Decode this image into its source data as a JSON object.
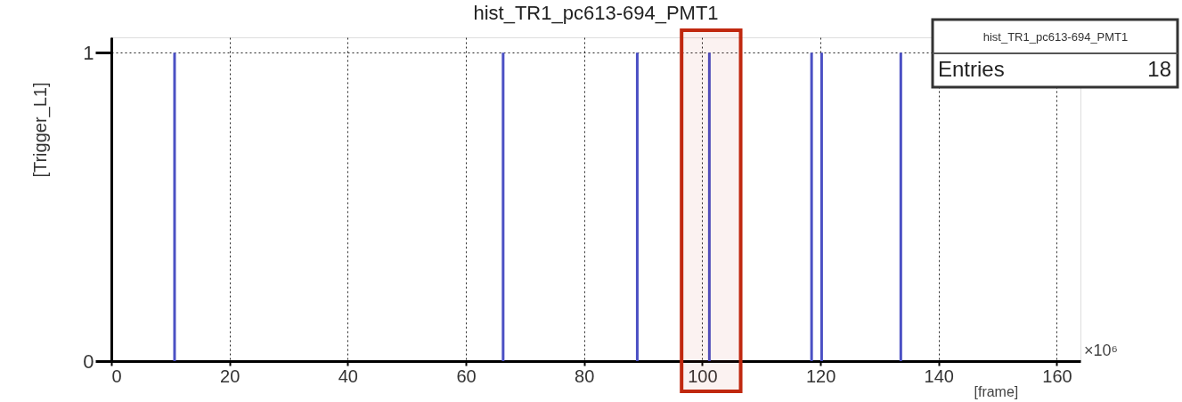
{
  "chart_data": {
    "type": "bar",
    "title": "hist_TR1_pc613-694_PMT1",
    "xlabel": "[frame]",
    "ylabel": "[Trigger_L1]",
    "x": [
      10.7,
      66.3,
      89.0,
      101.2,
      118.5,
      120.2,
      133.6
    ],
    "values": [
      1,
      1,
      1,
      1,
      1,
      1,
      1
    ],
    "color": "#4b50c4",
    "xlim": [
      0,
      164
    ],
    "xticks": [
      0,
      20,
      40,
      60,
      80,
      100,
      120,
      140,
      160
    ],
    "ylim": [
      0,
      1.05
    ],
    "yticks": [
      {
        "value": 0,
        "label": "0"
      },
      {
        "value": 1,
        "label": "1"
      }
    ],
    "grid": true,
    "bands": [
      {
        "axis": "x",
        "from": 96.5,
        "to": 106.5,
        "color": "#c0280f"
      }
    ],
    "annotations": [
      "×10⁶",
      "hist_TR1_pc613-694_PMT1",
      "Entries 18"
    ]
  }
}
